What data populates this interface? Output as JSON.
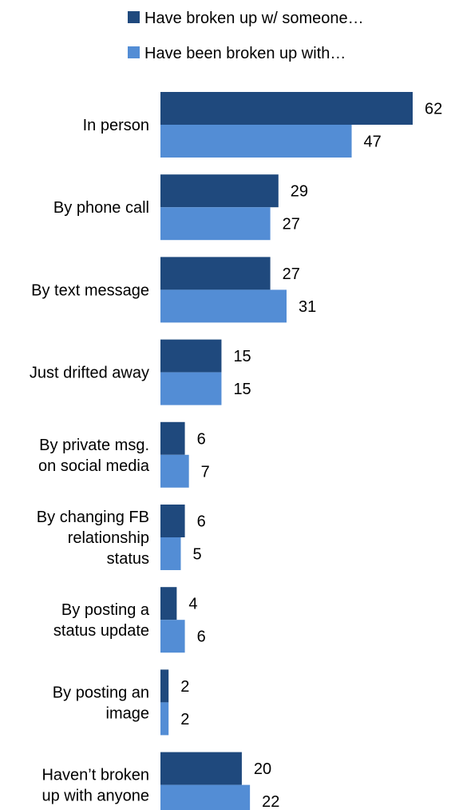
{
  "chart_data": {
    "type": "bar",
    "orientation": "horizontal",
    "categories": [
      [
        "In person"
      ],
      [
        "By phone call"
      ],
      [
        "By text message"
      ],
      [
        "Just drifted away"
      ],
      [
        "By private msg.",
        "on social media"
      ],
      [
        "By changing FB",
        "relationship",
        "status"
      ],
      [
        "By posting a",
        "status update"
      ],
      [
        "By posting an",
        "image"
      ],
      [
        "Haven’t broken",
        "up with anyone"
      ]
    ],
    "series": [
      {
        "name": "Have broken up w/ someone…",
        "color": "#1f497d",
        "values": [
          62,
          29,
          27,
          15,
          6,
          6,
          4,
          2,
          20
        ]
      },
      {
        "name": "Have been broken up with…",
        "color": "#538dd5",
        "values": [
          47,
          27,
          31,
          15,
          7,
          5,
          6,
          2,
          22
        ]
      }
    ],
    "title": "",
    "xlabel": "",
    "ylabel": "",
    "xlim": [
      0,
      62
    ],
    "grid": false,
    "legend": "top",
    "data_labels": true
  }
}
